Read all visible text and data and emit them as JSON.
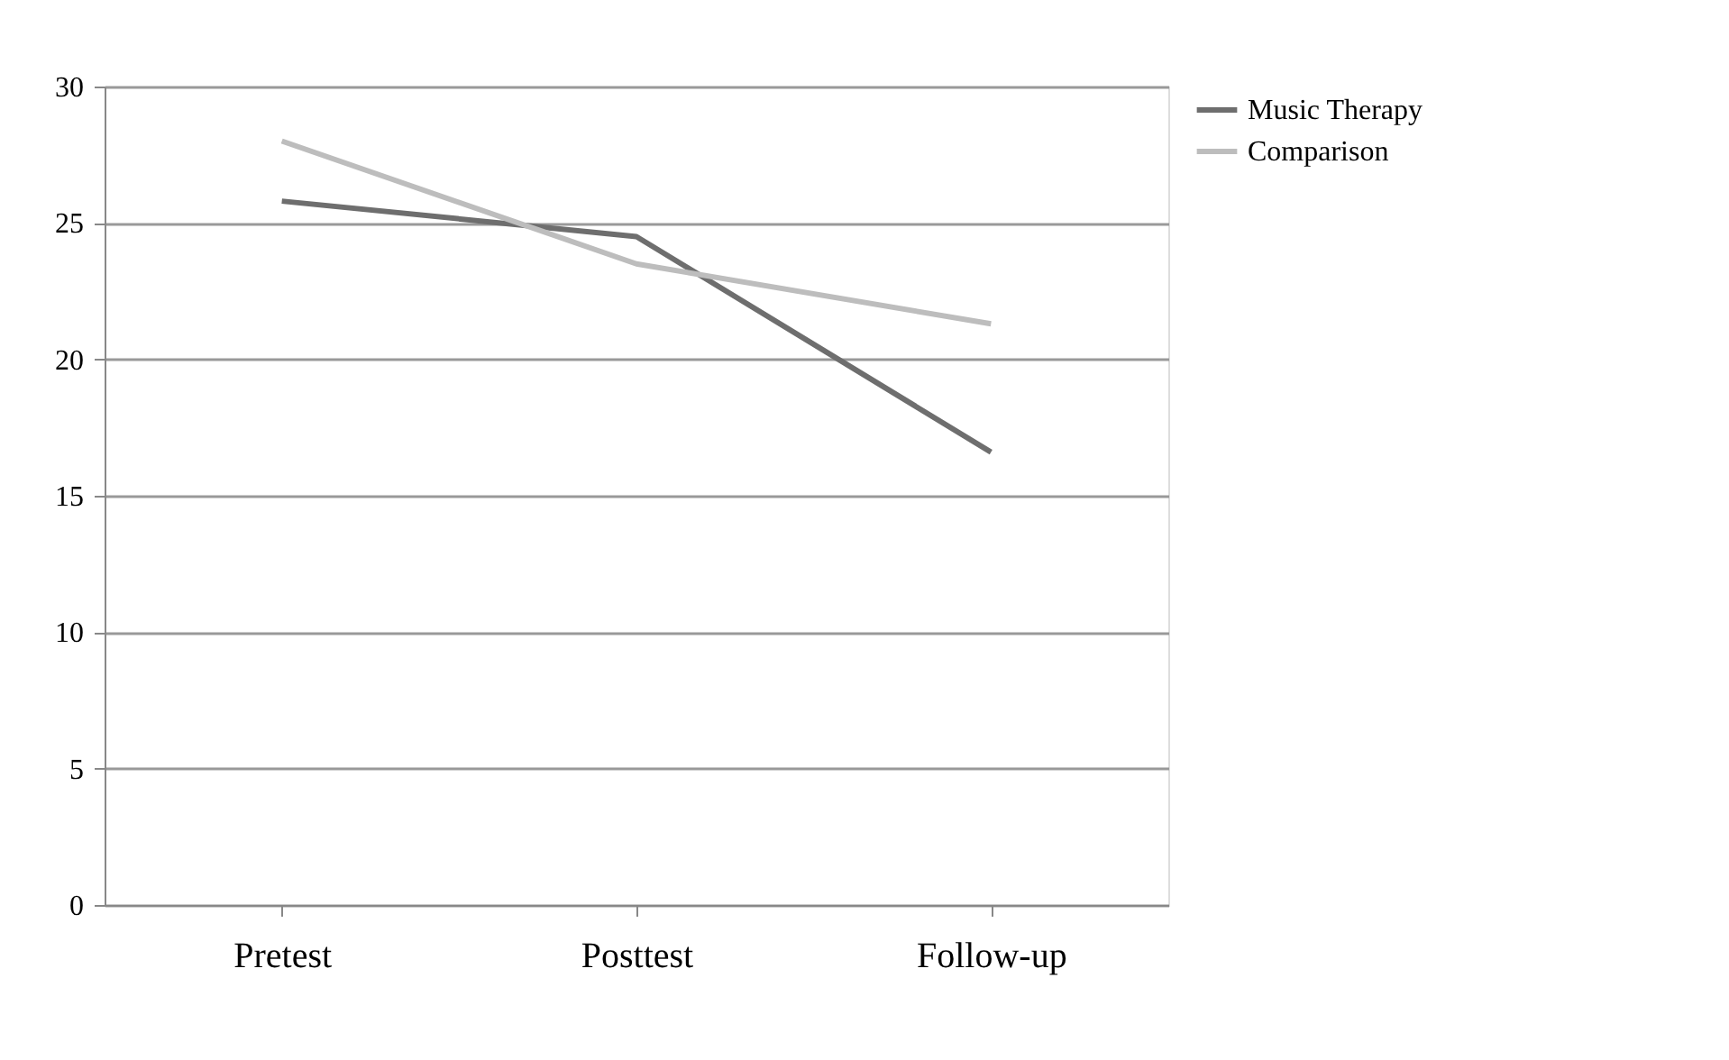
{
  "chart_data": {
    "type": "line",
    "categories": [
      "Pretest",
      "Posttest",
      "Follow-up"
    ],
    "series": [
      {
        "name": "Music Therapy",
        "color": "#6e6e6e",
        "values": [
          25.8,
          24.5,
          16.6
        ]
      },
      {
        "name": "Comparison",
        "color": "#bdbdbd",
        "values": [
          28.0,
          23.5,
          21.3
        ]
      }
    ],
    "ylim": [
      0,
      30
    ],
    "yticks": [
      0,
      5,
      10,
      15,
      20,
      25,
      30
    ],
    "grid": "y",
    "legend": "right",
    "marker": "none",
    "line_style": "solid"
  }
}
